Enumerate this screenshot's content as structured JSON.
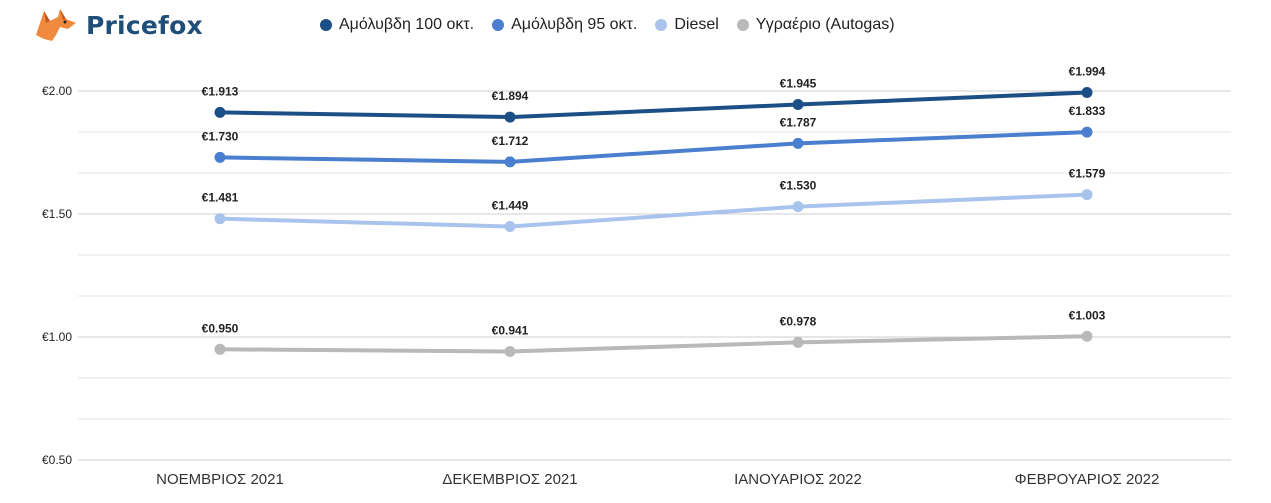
{
  "brand": {
    "name": "Pricefox",
    "logo_icon": "fox-icon"
  },
  "chart_data": {
    "type": "line",
    "title": "",
    "xlabel": "",
    "ylabel": "",
    "categories": [
      "ΝΟΕΜΒΡΙΟΣ 2021",
      "ΔΕΚΕΜΒΡΙΟΣ 2021",
      "ΙΑΝΟΥΑΡΙΟΣ 2022",
      "ΦΕΒΡΟΥΑΡΙΟΣ 2022"
    ],
    "ylim": [
      0.5,
      2.0
    ],
    "yticks": [
      {
        "value": 0.5,
        "label": "€0.50"
      },
      {
        "value": 1.0,
        "label": "€1.00"
      },
      {
        "value": 1.5,
        "label": "€1.50"
      },
      {
        "value": 2.0,
        "label": "€2.00"
      }
    ],
    "grid": true,
    "legend_position": "top",
    "series": [
      {
        "name": "Αμόλυβδη 100 οκτ.",
        "color": "#1c4f86",
        "values": [
          1.913,
          1.894,
          1.945,
          1.994
        ],
        "labels": [
          "€1.913",
          "€1.894",
          "€1.945",
          "€1.994"
        ]
      },
      {
        "name": "Αμόλυβδη 95 οκτ.",
        "color": "#4a7ecf",
        "values": [
          1.73,
          1.712,
          1.787,
          1.833
        ],
        "labels": [
          "€1.730",
          "€1.712",
          "€1.787",
          "€1.833"
        ]
      },
      {
        "name": "Diesel",
        "color": "#a9c4ec",
        "values": [
          1.481,
          1.449,
          1.53,
          1.579
        ],
        "labels": [
          "€1.481",
          "€1.449",
          "€1.530",
          "€1.579"
        ]
      },
      {
        "name": "Υγραέριο (Autogas)",
        "color": "#b9b9b9",
        "values": [
          0.95,
          0.941,
          0.978,
          1.003
        ],
        "labels": [
          "€0.950",
          "€0.941",
          "€0.978",
          "€1.003"
        ]
      }
    ]
  }
}
